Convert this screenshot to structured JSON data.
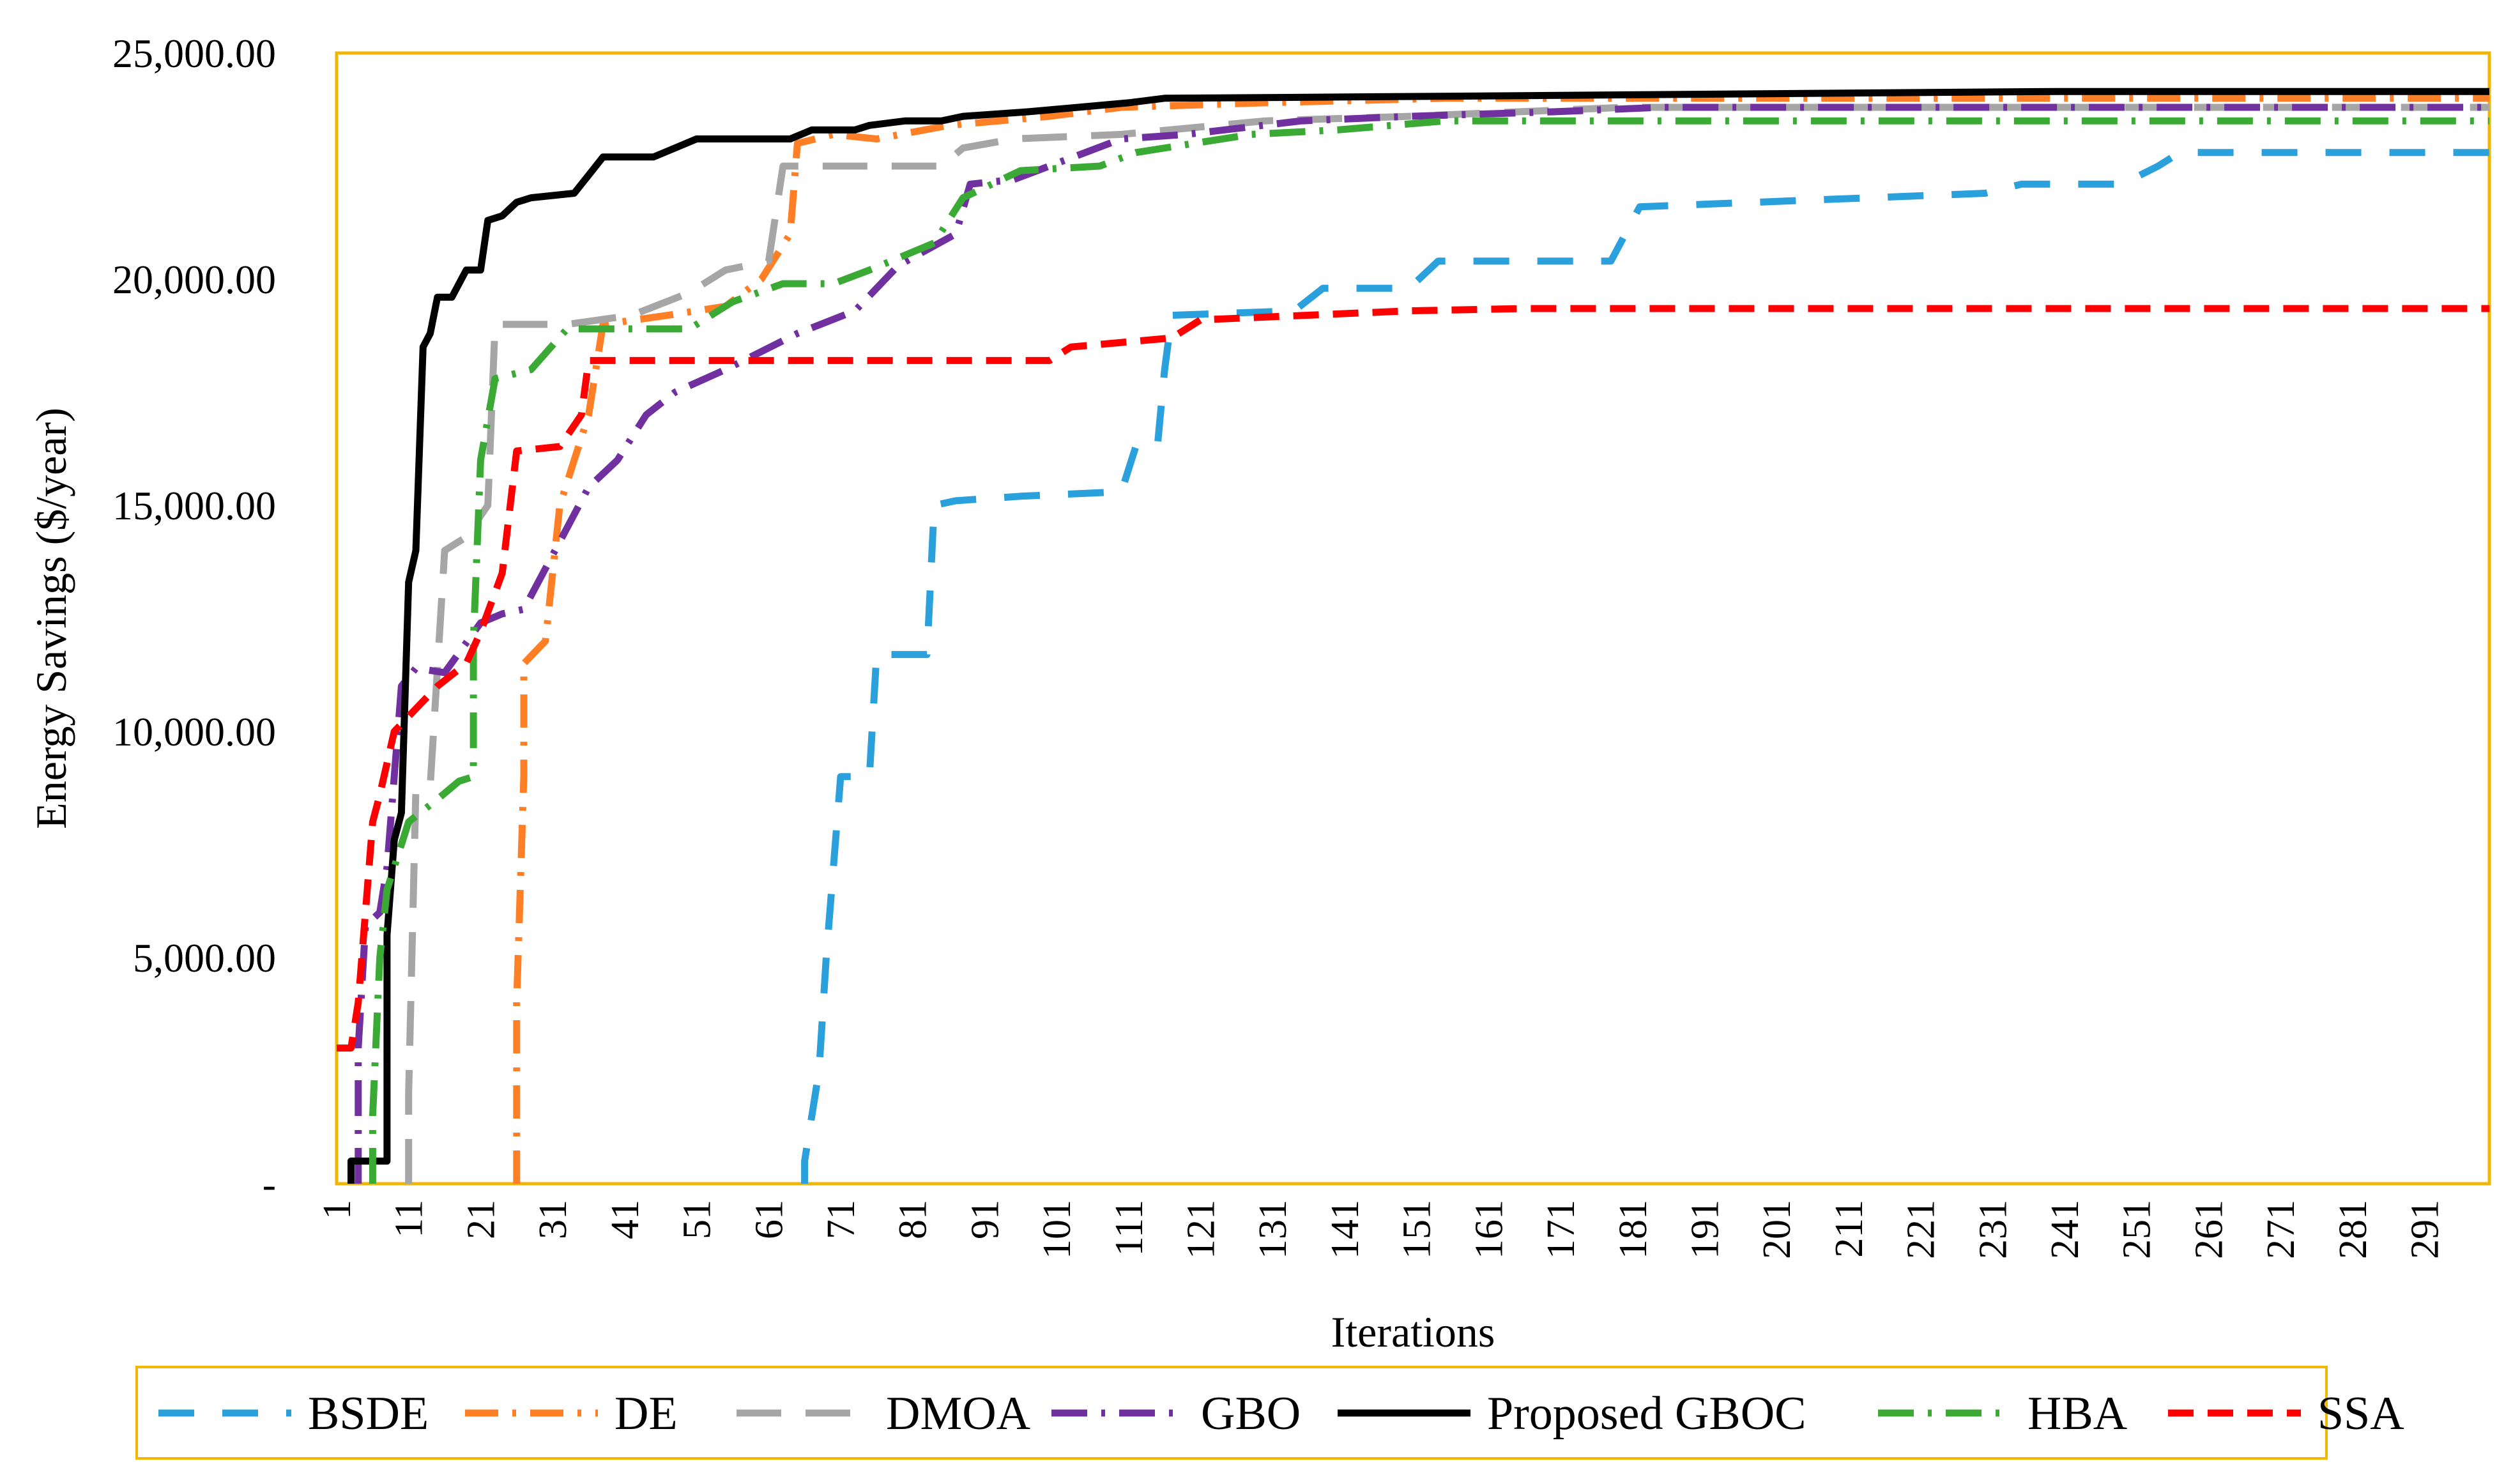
{
  "chart_data": {
    "type": "line",
    "title": "",
    "xlabel": "Iterations",
    "ylabel": "Energy Savings ($/year)",
    "xlim": [
      1,
      300
    ],
    "ylim": [
      0,
      25000
    ],
    "y_ticks": [
      {
        "value": 0,
        "label": "-"
      },
      {
        "value": 5000,
        "label": "5,000.00"
      },
      {
        "value": 10000,
        "label": "10,000.00"
      },
      {
        "value": 15000,
        "label": "15,000.00"
      },
      {
        "value": 20000,
        "label": "20,000.00"
      },
      {
        "value": 25000,
        "label": "25,000.00"
      }
    ],
    "x_ticks": [
      "1",
      "11",
      "21",
      "31",
      "41",
      "51",
      "61",
      "71",
      "81",
      "91",
      "101",
      "111",
      "121",
      "131",
      "141",
      "151",
      "161",
      "171",
      "181",
      "191",
      "201",
      "211",
      "221",
      "231",
      "241",
      "251",
      "261",
      "271",
      "281",
      "291"
    ],
    "legend_position": "bottom",
    "plot_border_color": "#f2b500",
    "series": [
      {
        "name": "BSDE",
        "color": "#2aa0dc",
        "dash": "56,44",
        "points": [
          [
            66,
            0
          ],
          [
            66,
            500
          ],
          [
            68,
            2500
          ],
          [
            69,
            5000
          ],
          [
            70,
            7000
          ],
          [
            71,
            9000
          ],
          [
            75,
            9000
          ],
          [
            76,
            11700
          ],
          [
            83,
            11700
          ],
          [
            84,
            15000
          ],
          [
            87,
            15100
          ],
          [
            96,
            15200
          ],
          [
            110,
            15300
          ],
          [
            112,
            16300
          ],
          [
            115,
            16300
          ],
          [
            116,
            18000
          ],
          [
            117,
            19200
          ],
          [
            134,
            19300
          ],
          [
            138,
            19800
          ],
          [
            150,
            19800
          ],
          [
            154,
            20400
          ],
          [
            178,
            20400
          ],
          [
            182,
            21600
          ],
          [
            230,
            21900
          ],
          [
            235,
            22100
          ],
          [
            249,
            22100
          ],
          [
            254,
            22500
          ],
          [
            257,
            22800
          ],
          [
            300,
            22800
          ]
        ]
      },
      {
        "name": "DE",
        "color": "#ff7f27",
        "dash": "52,22,6,22",
        "points": [
          [
            26,
            0
          ],
          [
            26,
            4000
          ],
          [
            27,
            9000
          ],
          [
            27,
            11500
          ],
          [
            30,
            12000
          ],
          [
            32,
            15000
          ],
          [
            36,
            17000
          ],
          [
            38,
            19000
          ],
          [
            47,
            19200
          ],
          [
            55,
            19400
          ],
          [
            60,
            20000
          ],
          [
            64,
            21000
          ],
          [
            65,
            23000
          ],
          [
            70,
            23200
          ],
          [
            76,
            23100
          ],
          [
            86,
            23400
          ],
          [
            100,
            23600
          ],
          [
            110,
            23800
          ],
          [
            130,
            23900
          ],
          [
            155,
            24000
          ],
          [
            300,
            24000
          ]
        ]
      },
      {
        "name": "DMOA",
        "color": "#a6a6a6",
        "dash": "70,38",
        "points": [
          [
            11,
            0
          ],
          [
            11,
            2000
          ],
          [
            12,
            8700
          ],
          [
            14,
            8800
          ],
          [
            16,
            14000
          ],
          [
            19,
            14300
          ],
          [
            22,
            15000
          ],
          [
            23,
            19000
          ],
          [
            33,
            19000
          ],
          [
            42,
            19200
          ],
          [
            50,
            19700
          ],
          [
            55,
            20200
          ],
          [
            61,
            20400
          ],
          [
            63,
            22500
          ],
          [
            78,
            22500
          ],
          [
            85,
            22500
          ],
          [
            88,
            22900
          ],
          [
            95,
            23100
          ],
          [
            110,
            23200
          ],
          [
            130,
            23500
          ],
          [
            150,
            23600
          ],
          [
            180,
            23800
          ],
          [
            300,
            23800
          ]
        ]
      },
      {
        "name": "GBO",
        "color": "#7030a0",
        "dash": "56,22,6,22",
        "points": [
          [
            4,
            0
          ],
          [
            4,
            3000
          ],
          [
            5,
            5700
          ],
          [
            7,
            6000
          ],
          [
            8,
            7000
          ],
          [
            10,
            11000
          ],
          [
            12,
            11400
          ],
          [
            16,
            11300
          ],
          [
            21,
            12400
          ],
          [
            24,
            12600
          ],
          [
            27,
            12700
          ],
          [
            33,
            14500
          ],
          [
            36,
            15400
          ],
          [
            40,
            16000
          ],
          [
            44,
            17000
          ],
          [
            48,
            17500
          ],
          [
            55,
            18000
          ],
          [
            65,
            18800
          ],
          [
            73,
            19300
          ],
          [
            79,
            20300
          ],
          [
            87,
            21000
          ],
          [
            89,
            22100
          ],
          [
            95,
            22200
          ],
          [
            110,
            23100
          ],
          [
            119,
            23200
          ],
          [
            135,
            23500
          ],
          [
            150,
            23600
          ],
          [
            170,
            23700
          ],
          [
            185,
            23800
          ],
          [
            300,
            23800
          ]
        ]
      },
      {
        "name": "Proposed GBOC",
        "color": "#000000",
        "dash": "",
        "points": [
          [
            3,
            0
          ],
          [
            3,
            500
          ],
          [
            8,
            500
          ],
          [
            8,
            5500
          ],
          [
            9,
            7600
          ],
          [
            10,
            8200
          ],
          [
            11,
            13300
          ],
          [
            12,
            14000
          ],
          [
            13,
            18500
          ],
          [
            14,
            18800
          ],
          [
            15,
            19600
          ],
          [
            17,
            19600
          ],
          [
            19,
            20200
          ],
          [
            21,
            20200
          ],
          [
            22,
            21300
          ],
          [
            24,
            21400
          ],
          [
            26,
            21700
          ],
          [
            28,
            21800
          ],
          [
            34,
            21900
          ],
          [
            36,
            22300
          ],
          [
            38,
            22700
          ],
          [
            45,
            22700
          ],
          [
            48,
            22900
          ],
          [
            51,
            23100
          ],
          [
            64,
            23100
          ],
          [
            67,
            23300
          ],
          [
            73,
            23300
          ],
          [
            75,
            23400
          ],
          [
            80,
            23500
          ],
          [
            85,
            23500
          ],
          [
            88,
            23600
          ],
          [
            97,
            23700
          ],
          [
            104,
            23800
          ],
          [
            111,
            23900
          ],
          [
            116,
            24000
          ],
          [
            160,
            24050
          ],
          [
            240,
            24150
          ],
          [
            300,
            24150
          ]
        ]
      },
      {
        "name": "HBA",
        "color": "#3aaa35",
        "dash": "56,22,6,22",
        "points": [
          [
            6,
            0
          ],
          [
            6,
            1500
          ],
          [
            7,
            5000
          ],
          [
            8,
            6500
          ],
          [
            11,
            8000
          ],
          [
            15,
            8500
          ],
          [
            18,
            8900
          ],
          [
            20,
            9000
          ],
          [
            20,
            12000
          ],
          [
            21,
            16000
          ],
          [
            23,
            17800
          ],
          [
            28,
            18000
          ],
          [
            33,
            18900
          ],
          [
            50,
            18900
          ],
          [
            56,
            19500
          ],
          [
            63,
            19900
          ],
          [
            70,
            19900
          ],
          [
            75,
            20200
          ],
          [
            84,
            20800
          ],
          [
            88,
            21800
          ],
          [
            96,
            22400
          ],
          [
            107,
            22500
          ],
          [
            112,
            22800
          ],
          [
            128,
            23200
          ],
          [
            140,
            23300
          ],
          [
            155,
            23500
          ],
          [
            300,
            23500
          ]
        ]
      },
      {
        "name": "SSA",
        "color": "#ff0000",
        "dash": "40,22",
        "points": [
          [
            1,
            3000
          ],
          [
            3,
            3000
          ],
          [
            4,
            4000
          ],
          [
            5,
            6000
          ],
          [
            6,
            8000
          ],
          [
            7,
            8600
          ],
          [
            9,
            10000
          ],
          [
            12,
            10500
          ],
          [
            15,
            11000
          ],
          [
            19,
            11500
          ],
          [
            21,
            12200
          ],
          [
            24,
            13500
          ],
          [
            26,
            16200
          ],
          [
            32,
            16300
          ],
          [
            35,
            17000
          ],
          [
            36,
            18200
          ],
          [
            100,
            18200
          ],
          [
            103,
            18500
          ],
          [
            110,
            18600
          ],
          [
            117,
            18700
          ],
          [
            121,
            19100
          ],
          [
            150,
            19300
          ],
          [
            166,
            19350
          ],
          [
            300,
            19350
          ]
        ]
      }
    ]
  }
}
